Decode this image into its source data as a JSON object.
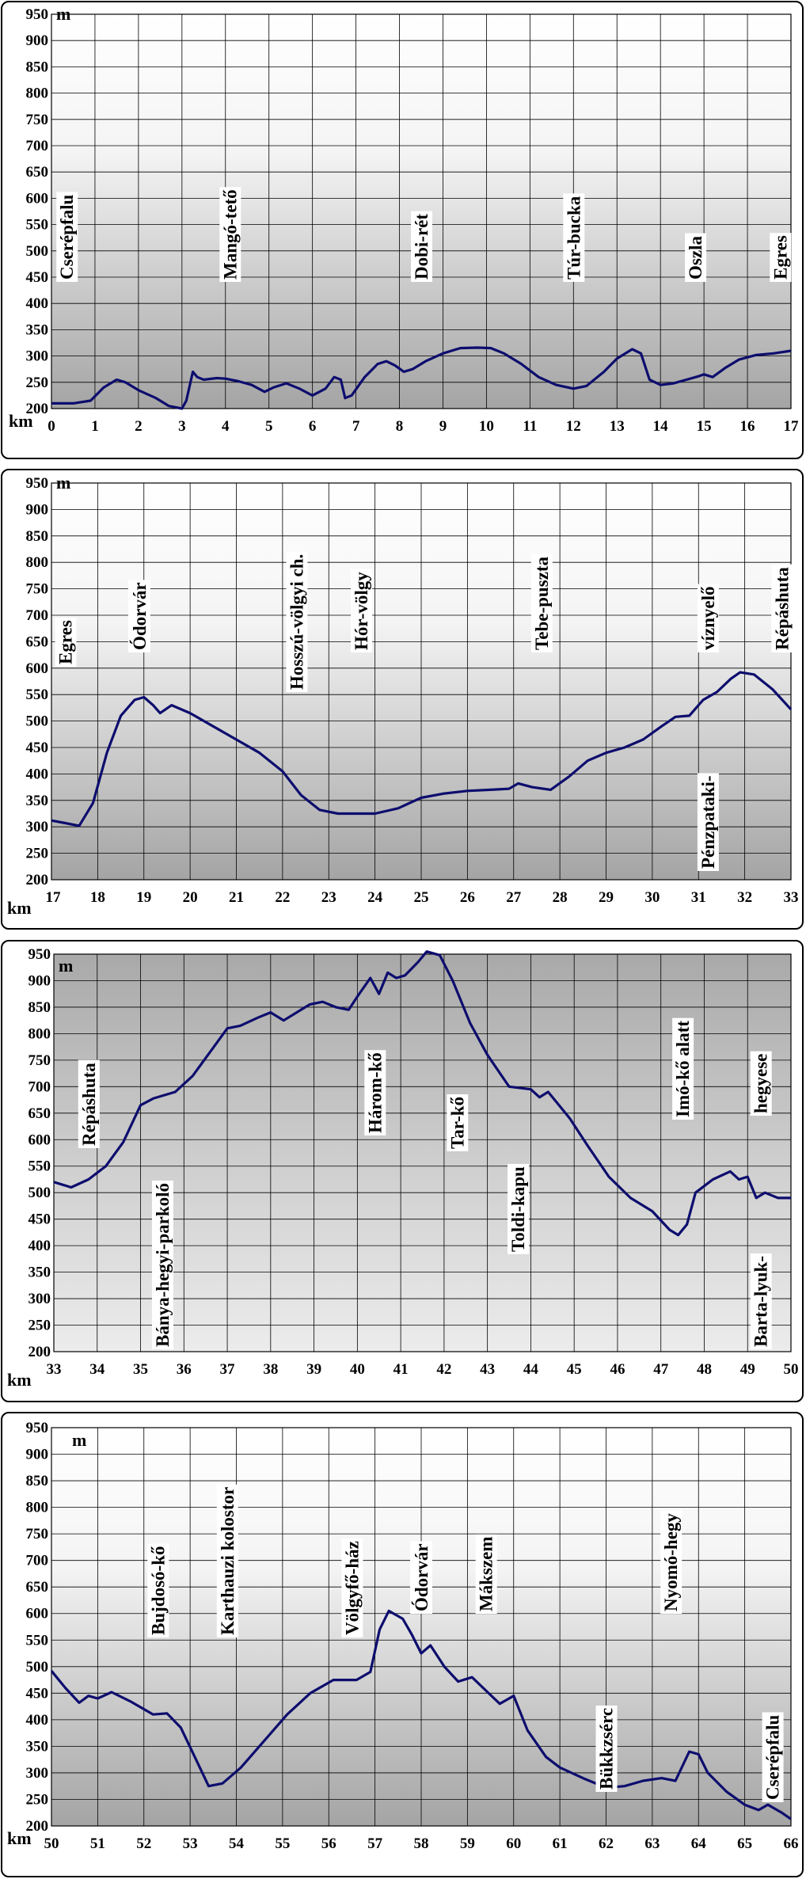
{
  "units": {
    "y": "m",
    "x": "km"
  },
  "chart_data": [
    {
      "type": "line",
      "xlim": [
        0,
        17
      ],
      "ylim": [
        200,
        950
      ],
      "xticks": [
        0,
        1,
        2,
        3,
        4,
        5,
        6,
        7,
        8,
        9,
        10,
        11,
        12,
        13,
        14,
        15,
        16,
        17
      ],
      "yticks": [
        200,
        250,
        300,
        350,
        400,
        450,
        500,
        550,
        600,
        650,
        700,
        750,
        800,
        850,
        900,
        950
      ],
      "grid": true,
      "background": "white-to-gray-gradient",
      "xlabel": "km",
      "ylabel": "m",
      "annotations": [
        {
          "text": "Cserépfalu",
          "x": 0.35
        },
        {
          "text": "Mangó-tető",
          "x": 4.1
        },
        {
          "text": "Dobi-rét",
          "x": 8.5
        },
        {
          "text": "Túr-bucka",
          "x": 12
        },
        {
          "text": "Oszla",
          "x": 14.8
        },
        {
          "text": "Egres",
          "x": 16.75
        }
      ],
      "x": [
        0,
        0.5,
        0.9,
        1.2,
        1.5,
        1.7,
        2.0,
        2.4,
        2.7,
        3.0,
        3.1,
        3.25,
        3.35,
        3.5,
        3.8,
        4.0,
        4.3,
        4.6,
        4.9,
        5.1,
        5.4,
        5.7,
        6.0,
        6.3,
        6.5,
        6.65,
        6.75,
        6.9,
        7.2,
        7.5,
        7.7,
        7.9,
        8.1,
        8.3,
        8.6,
        9.0,
        9.4,
        9.8,
        10.1,
        10.4,
        10.8,
        11.2,
        11.6,
        12.0,
        12.3,
        12.7,
        13.0,
        13.35,
        13.55,
        13.75,
        14.0,
        14.3,
        14.6,
        14.9,
        15.0,
        15.2,
        15.5,
        15.8,
        16.2,
        16.6,
        17.0
      ],
      "y": [
        210,
        210,
        215,
        240,
        255,
        250,
        235,
        220,
        205,
        200,
        215,
        270,
        260,
        255,
        258,
        257,
        252,
        245,
        232,
        240,
        248,
        238,
        225,
        238,
        260,
        255,
        220,
        225,
        260,
        285,
        290,
        282,
        270,
        275,
        290,
        305,
        315,
        316,
        315,
        305,
        285,
        260,
        245,
        238,
        243,
        270,
        295,
        313,
        305,
        255,
        245,
        248,
        255,
        262,
        265,
        260,
        278,
        293,
        302,
        305,
        310
      ]
    },
    {
      "type": "line",
      "xlim": [
        17,
        33
      ],
      "ylim": [
        200,
        950
      ],
      "xticks": [
        17,
        18,
        19,
        20,
        21,
        22,
        23,
        24,
        25,
        26,
        27,
        28,
        29,
        30,
        31,
        32,
        33
      ],
      "yticks": [
        200,
        250,
        300,
        350,
        400,
        450,
        500,
        550,
        600,
        650,
        700,
        750,
        800,
        850,
        900,
        950
      ],
      "grid": true,
      "background": "white-to-gray-gradient",
      "xlabel": "km",
      "ylabel": "m",
      "annotations": [
        {
          "text": "Egres",
          "x": 17.3
        },
        {
          "text": "Ódorvár",
          "x": 18.9
        },
        {
          "text": "Hosszú-völgyi ch.",
          "x": 22.3
        },
        {
          "text": "Hór-völgy",
          "x": 23.7
        },
        {
          "text": "Tebe-puszta",
          "x": 27.6
        },
        {
          "text": "víznyelő",
          "x": 31.2
        },
        {
          "text": "Pénzpataki-",
          "x": 31.2
        },
        {
          "text": "Répáshuta",
          "x": 32.8
        }
      ],
      "x": [
        17,
        17.3,
        17.6,
        17.9,
        18.2,
        18.5,
        18.8,
        19.0,
        19.2,
        19.35,
        19.6,
        20.0,
        20.5,
        21.0,
        21.5,
        22.0,
        22.4,
        22.8,
        23.2,
        23.6,
        24.0,
        24.5,
        25.0,
        25.5,
        26.0,
        26.5,
        26.9,
        27.1,
        27.4,
        27.8,
        28.2,
        28.6,
        29.0,
        29.4,
        29.8,
        30.2,
        30.5,
        30.8,
        31.1,
        31.4,
        31.7,
        31.9,
        32.2,
        32.6,
        33.0
      ],
      "y": [
        312,
        307,
        302,
        345,
        440,
        510,
        540,
        545,
        530,
        515,
        530,
        515,
        490,
        465,
        440,
        405,
        360,
        332,
        325,
        325,
        325,
        335,
        355,
        363,
        368,
        370,
        372,
        382,
        375,
        370,
        395,
        425,
        440,
        450,
        465,
        490,
        508,
        510,
        540,
        555,
        580,
        592,
        588,
        560,
        522
      ]
    },
    {
      "type": "line",
      "xlim": [
        33,
        50
      ],
      "ylim": [
        200,
        950
      ],
      "xticks": [
        33,
        34,
        35,
        36,
        37,
        38,
        39,
        40,
        41,
        42,
        43,
        44,
        45,
        46,
        47,
        48,
        49,
        50
      ],
      "yticks": [
        200,
        250,
        300,
        350,
        400,
        450,
        500,
        550,
        600,
        650,
        700,
        750,
        800,
        850,
        900,
        950
      ],
      "grid": true,
      "background": "white-to-gray-gradient",
      "xlabel": "km",
      "ylabel": "m",
      "annotations": [
        {
          "text": "Répáshuta",
          "x": 33.8
        },
        {
          "text": "Bánya-hegyi-parkoló",
          "x": 35.5
        },
        {
          "text": "Három-kő",
          "x": 40.4
        },
        {
          "text": "Tar-kő",
          "x": 42.3
        },
        {
          "text": "Toldi-kapu",
          "x": 43.7
        },
        {
          "text": "Imó-kő alatt",
          "x": 47.5
        },
        {
          "text": "hegyese",
          "x": 49.3
        },
        {
          "text": "Barta-lyuk-",
          "x": 49.3
        }
      ],
      "x": [
        33,
        33.4,
        33.8,
        34.2,
        34.6,
        35.0,
        35.3,
        35.8,
        36.2,
        36.6,
        37.0,
        37.3,
        37.7,
        38.0,
        38.3,
        38.6,
        38.9,
        39.2,
        39.5,
        39.8,
        40.0,
        40.3,
        40.5,
        40.7,
        40.9,
        41.1,
        41.4,
        41.6,
        41.9,
        42.2,
        42.6,
        43.0,
        43.5,
        44.0,
        44.2,
        44.4,
        44.6,
        44.9,
        45.3,
        45.8,
        46.3,
        46.8,
        47.2,
        47.4,
        47.6,
        47.8,
        48.2,
        48.6,
        48.8,
        49.0,
        49.2,
        49.4,
        49.7,
        50.0
      ],
      "y": [
        520,
        510,
        525,
        550,
        595,
        665,
        678,
        690,
        720,
        765,
        810,
        815,
        830,
        840,
        825,
        840,
        855,
        860,
        850,
        845,
        870,
        905,
        875,
        915,
        905,
        910,
        935,
        955,
        948,
        900,
        820,
        760,
        700,
        695,
        680,
        690,
        670,
        640,
        590,
        530,
        490,
        465,
        430,
        420,
        440,
        500,
        525,
        540,
        525,
        530,
        490,
        500,
        490,
        490
      ]
    },
    {
      "type": "line",
      "xlim": [
        50,
        66
      ],
      "ylim": [
        200,
        950
      ],
      "xticks": [
        50,
        51,
        52,
        53,
        54,
        55,
        56,
        57,
        58,
        59,
        60,
        61,
        62,
        63,
        64,
        65,
        66
      ],
      "yticks": [
        200,
        250,
        300,
        350,
        400,
        450,
        500,
        550,
        600,
        650,
        700,
        750,
        800,
        850,
        900,
        950
      ],
      "grid": true,
      "background": "white-to-gray-gradient",
      "xlabel": "km",
      "ylabel": "m",
      "annotations": [
        {
          "text": "Bujdosó-kő",
          "x": 52.3
        },
        {
          "text": "Karthauzi kolostor",
          "x": 53.8
        },
        {
          "text": "Völgyfő-ház",
          "x": 56.5
        },
        {
          "text": "Ódorvár",
          "x": 58
        },
        {
          "text": "Mákszem",
          "x": 59.4
        },
        {
          "text": "Bükkzsérc",
          "x": 62
        },
        {
          "text": "Nyomó-hegy",
          "x": 63.4
        },
        {
          "text": "Cserépfalu",
          "x": 65.6
        }
      ],
      "x": [
        50,
        50.3,
        50.6,
        50.8,
        51.0,
        51.3,
        51.7,
        52.2,
        52.5,
        52.8,
        53.1,
        53.4,
        53.7,
        54.1,
        54.6,
        55.1,
        55.6,
        56.1,
        56.6,
        56.9,
        57.1,
        57.3,
        57.6,
        57.8,
        58.0,
        58.2,
        58.5,
        58.8,
        59.1,
        59.4,
        59.7,
        60.0,
        60.3,
        60.7,
        61.0,
        61.5,
        62.0,
        62.4,
        62.8,
        63.2,
        63.5,
        63.8,
        64.0,
        64.2,
        64.6,
        65.0,
        65.3,
        65.5,
        65.8,
        66.0
      ],
      "y": [
        492,
        460,
        432,
        445,
        440,
        452,
        435,
        410,
        412,
        385,
        330,
        275,
        280,
        310,
        360,
        410,
        450,
        475,
        475,
        490,
        570,
        605,
        590,
        560,
        525,
        540,
        500,
        472,
        480,
        455,
        430,
        445,
        380,
        330,
        310,
        290,
        272,
        275,
        285,
        290,
        285,
        340,
        335,
        300,
        265,
        240,
        230,
        240,
        225,
        213
      ]
    }
  ]
}
